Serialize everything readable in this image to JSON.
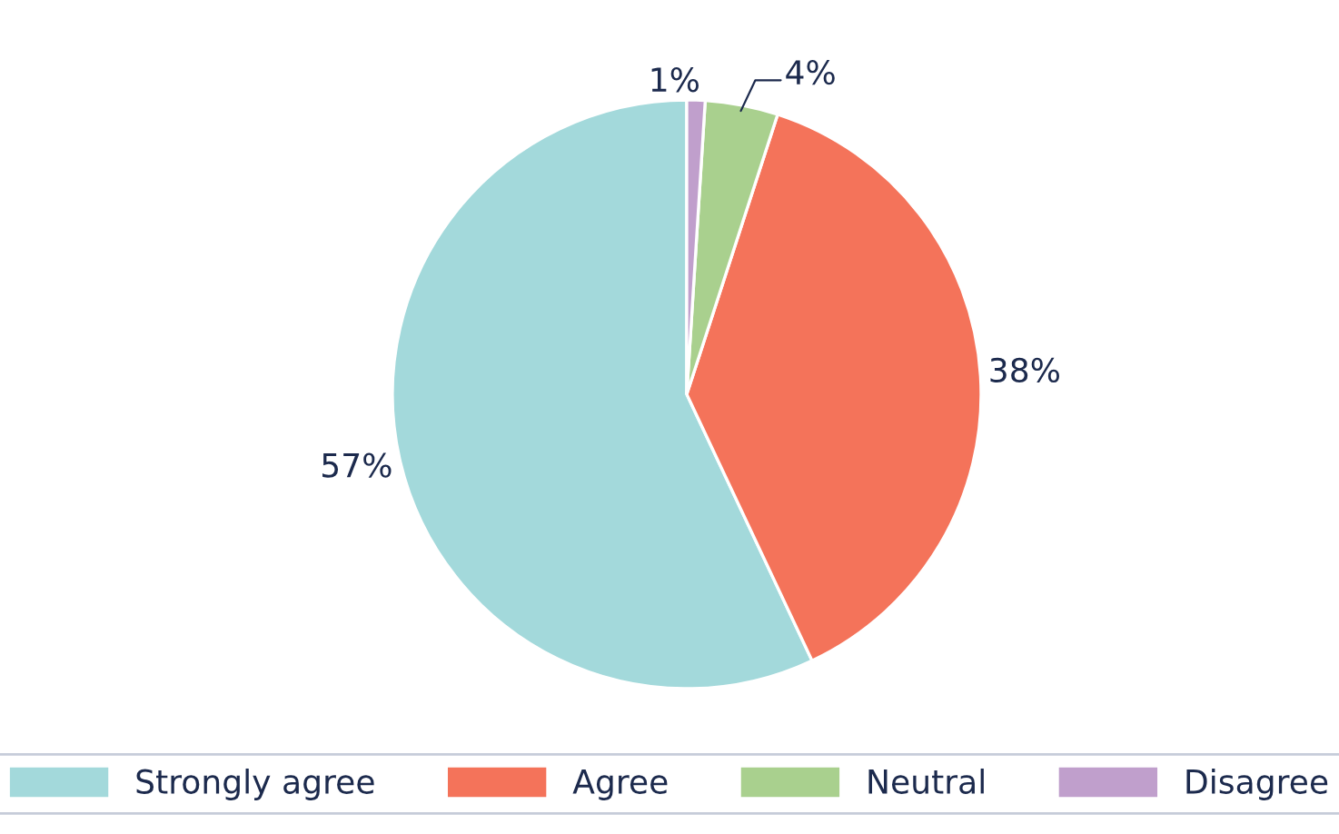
{
  "chart_data": {
    "type": "pie",
    "categories": [
      "Strongly agree",
      "Agree",
      "Neutral",
      "Disagree"
    ],
    "values": [
      57,
      38,
      4,
      1
    ],
    "colors": [
      "#a3d9db",
      "#f4735a",
      "#a9d08e",
      "#c09fcc"
    ],
    "value_labels": [
      "57%",
      "38%",
      "4%",
      "1%"
    ],
    "legend": "bottom"
  }
}
